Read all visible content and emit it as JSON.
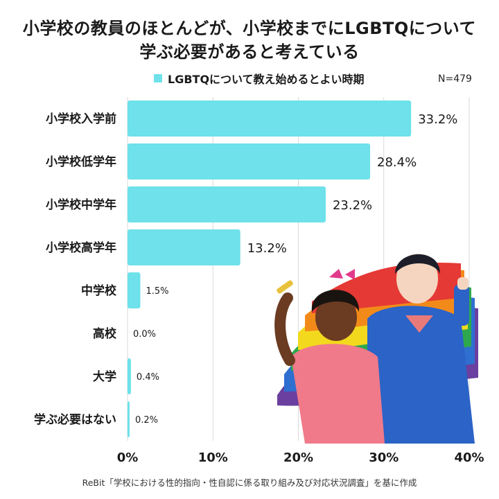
{
  "title": {
    "line1": "小学校の教員のほとんどが、小学校までにLGBTQについて",
    "line2": "学ぶ必要があると考えている"
  },
  "legend": {
    "label": "LGBTQについて教え始めるとよい時期",
    "n": "N=479"
  },
  "source": "ReBit「学校における性的指向・性自認に係る取り組み及び対応状況調査」を基に作成",
  "colors": {
    "bar": "#6ee1ea",
    "grid": "#d9d9d9"
  },
  "chart_data": {
    "type": "bar",
    "orientation": "horizontal",
    "categories": [
      "小学校入学前",
      "小学校低学年",
      "小学校中学年",
      "小学校高学年",
      "中学校",
      "高校",
      "大学",
      "学ぶ必要はない"
    ],
    "values": [
      33.2,
      28.4,
      23.2,
      13.2,
      1.5,
      0.0,
      0.4,
      0.2
    ],
    "value_labels": [
      "33.2%",
      "28.4%",
      "23.2%",
      "13.2%",
      "1.5%",
      "0.0%",
      "0.4%",
      "0.2%"
    ],
    "xlim": [
      0,
      40
    ],
    "xticks": [
      0,
      10,
      20,
      30,
      40
    ],
    "xtick_labels": [
      "0%",
      "10%",
      "20%",
      "30%",
      "40%"
    ],
    "grid": true,
    "legend_position": "top"
  }
}
